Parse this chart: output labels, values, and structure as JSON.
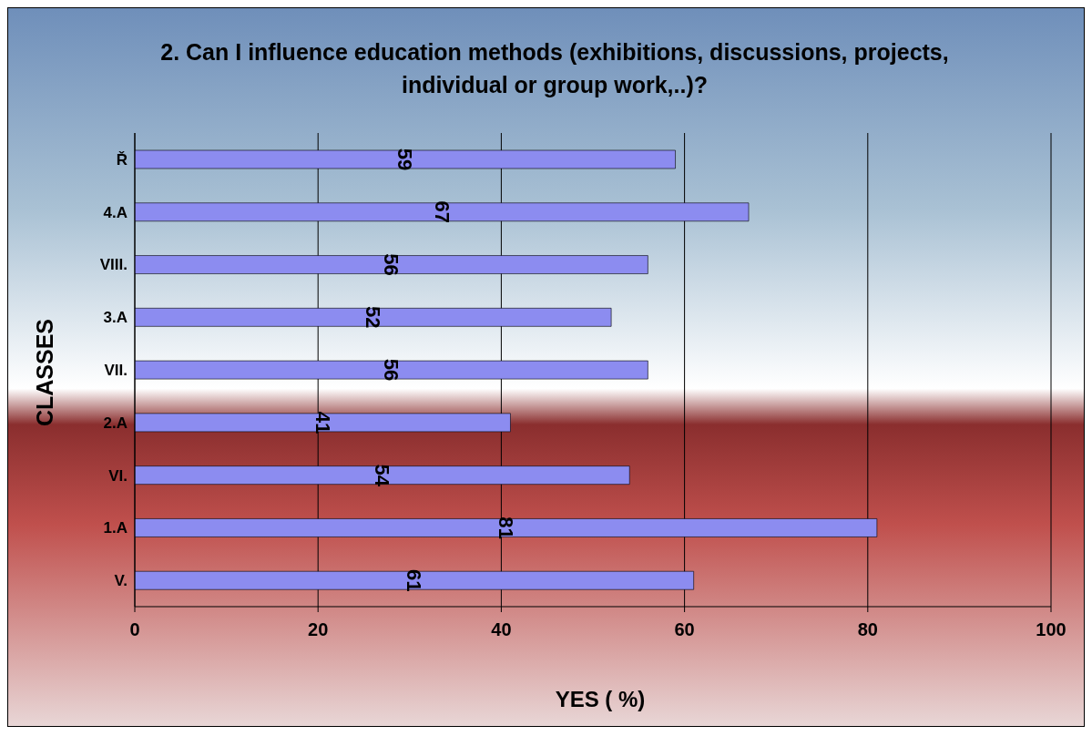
{
  "chart_data": {
    "type": "bar",
    "orientation": "horizontal",
    "title": "2. Can I influence education methods (exhibitions, discussions, projects, individual or group work,..)?",
    "xlabel": "YES ( %)",
    "ylabel": "CLASSES",
    "categories": [
      "Ř",
      "4.A",
      "VIII.",
      "3.A",
      "VII.",
      "2.A",
      "VI.",
      "1.A",
      "V."
    ],
    "values": [
      59,
      67,
      56,
      52,
      56,
      41,
      54,
      81,
      61
    ],
    "color": "#8c8cf0",
    "xlim": [
      0,
      100
    ],
    "xticks": [
      0,
      20,
      40,
      60,
      80,
      100
    ],
    "grid": "x",
    "data_labels": true
  }
}
